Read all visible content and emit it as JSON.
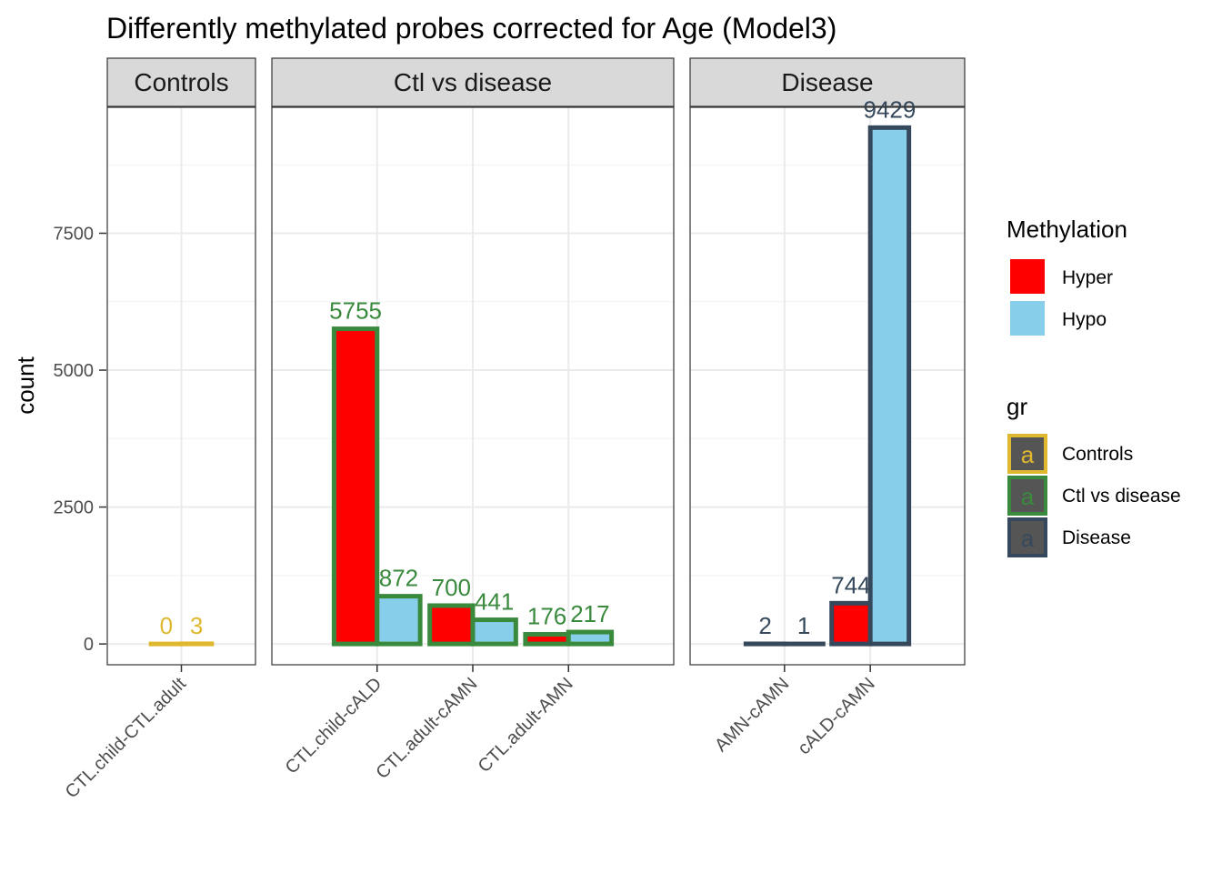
{
  "chart_data": {
    "type": "bar",
    "title": "Differently methylated probes corrected for Age (Model3)",
    "xlabel": "",
    "ylabel": "count",
    "ylim": [
      -380,
      9800
    ],
    "yticks": [
      0,
      2500,
      5000,
      7500
    ],
    "grid": true,
    "legend_position": "right",
    "facets": [
      {
        "name": "Controls",
        "group_color": "#E0B830",
        "categories": [
          "CTL.child-CTL.adult"
        ],
        "bars": [
          {
            "category": "CTL.child-CTL.adult",
            "methylation": "Hyper",
            "value": 0
          },
          {
            "category": "CTL.child-CTL.adult",
            "methylation": "Hypo",
            "value": 3
          }
        ]
      },
      {
        "name": "Ctl vs disease",
        "group_color": "#3A8A3E",
        "categories": [
          "CTL.child-cALD",
          "CTL.adult-cAMN",
          "CTL.adult-AMN"
        ],
        "bars": [
          {
            "category": "CTL.child-cALD",
            "methylation": "Hyper",
            "value": 5755
          },
          {
            "category": "CTL.child-cALD",
            "methylation": "Hypo",
            "value": 872
          },
          {
            "category": "CTL.adult-cAMN",
            "methylation": "Hyper",
            "value": 700
          },
          {
            "category": "CTL.adult-cAMN",
            "methylation": "Hypo",
            "value": 441
          },
          {
            "category": "CTL.adult-AMN",
            "methylation": "Hyper",
            "value": 176
          },
          {
            "category": "CTL.adult-AMN",
            "methylation": "Hypo",
            "value": 217
          }
        ]
      },
      {
        "name": "Disease",
        "group_color": "#36495C",
        "categories": [
          "AMN-cAMN",
          "cALD-cAMN"
        ],
        "bars": [
          {
            "category": "AMN-cAMN",
            "methylation": "Hyper",
            "value": 2
          },
          {
            "category": "AMN-cAMN",
            "methylation": "Hypo",
            "value": 1
          },
          {
            "category": "cALD-cAMN",
            "methylation": "Hyper",
            "value": 744
          },
          {
            "category": "cALD-cAMN",
            "methylation": "Hypo",
            "value": 9429
          }
        ]
      }
    ],
    "legend": {
      "fill": {
        "title": "Methylation",
        "entries": [
          {
            "label": "Hyper",
            "color": "#FF0000"
          },
          {
            "label": "Hypo",
            "color": "#87CEEB"
          }
        ]
      },
      "colour": {
        "title": "gr",
        "key_glyph": "a",
        "entries": [
          {
            "label": "Controls",
            "color": "#E0B830"
          },
          {
            "label": "Ctl vs disease",
            "color": "#3A8A3E"
          },
          {
            "label": "Disease",
            "color": "#36495C"
          }
        ]
      }
    }
  }
}
